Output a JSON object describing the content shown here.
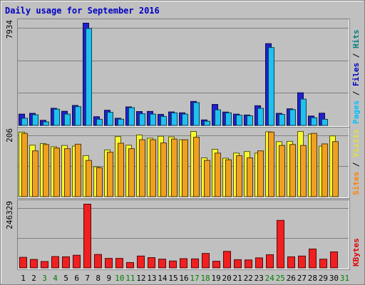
{
  "chart_data": {
    "type": "bar",
    "title": "Daily usage for September 2016",
    "days": [
      "1",
      "2",
      "3",
      "4",
      "5",
      "6",
      "7",
      "8",
      "9",
      "10",
      "11",
      "12",
      "13",
      "14",
      "15",
      "16",
      "17",
      "18",
      "19",
      "20",
      "21",
      "22",
      "23",
      "24",
      "25",
      "26",
      "27",
      "28",
      "29",
      "30",
      "31"
    ],
    "weekend_days": [
      "3",
      "4",
      "10",
      "11",
      "17",
      "18",
      "24",
      "25",
      "31"
    ],
    "panels": [
      {
        "id": "hits",
        "max_label": "7934",
        "ymax": 7934,
        "legend": [
          {
            "text": "Pages",
            "color": "#00C0FF"
          },
          {
            "text": " / ",
            "color": "#000000"
          },
          {
            "text": "Files",
            "color": "#0000C0"
          },
          {
            "text": " / ",
            "color": "#000000"
          },
          {
            "text": "Hits",
            "color": "#008080"
          }
        ],
        "series": [
          {
            "key": "hits",
            "color": "#2020D0",
            "values": [
              900,
              960,
              420,
              1350,
              1120,
              1570,
              7934,
              700,
              1200,
              580,
              1460,
              1100,
              1110,
              880,
              1070,
              1000,
              1880,
              450,
              1650,
              1060,
              900,
              830,
              1550,
              6350,
              960,
              1310,
              2550,
              750,
              970,
              0
            ]
          },
          {
            "key": "files",
            "color": "#20C0F0",
            "values": [
              580,
              850,
              300,
              1280,
              900,
              1480,
              7520,
              500,
              1040,
              510,
              1400,
              930,
              900,
              720,
              1000,
              900,
              1790,
              350,
              1230,
              1000,
              820,
              770,
              1350,
              6050,
              880,
              1250,
              2060,
              620,
              500,
              0
            ]
          }
        ]
      },
      {
        "id": "visits",
        "max_label": "206",
        "ymax": 206,
        "legend": [
          {
            "text": "Sites",
            "color": "#FF8000"
          },
          {
            "text": " / ",
            "color": "#000000"
          },
          {
            "text": "Visits",
            "color": "#E0E040"
          }
        ],
        "series": [
          {
            "key": "visits",
            "color": "#F8F830",
            "values": [
              204,
              163,
              168,
              158,
              162,
              160,
              130,
              95,
              148,
              190,
              163,
              195,
              185,
              191,
              189,
              180,
              206,
              123,
              150,
              122,
              138,
              143,
              138,
              205,
              174,
              175,
              206,
              198,
              160,
              192
            ]
          },
          {
            "key": "sites",
            "color": "#F0A020",
            "values": [
              200,
              145,
              165,
              154,
              152,
              166,
              115,
              92,
              141,
              169,
              152,
              180,
              180,
              170,
              182,
              180,
              188,
              115,
              138,
              117,
              130,
              123,
              145,
              204,
              162,
              165,
              162,
              200,
              167,
              174
            ]
          }
        ]
      },
      {
        "id": "kbytes",
        "max_label": "246329",
        "ymax": 246329,
        "legend": [
          {
            "text": "KBytes",
            "color": "#E00000"
          }
        ],
        "series": [
          {
            "key": "kbytes",
            "color": "#F02020",
            "values": [
              42000,
              34000,
              26000,
              45000,
              44000,
              50000,
              246329,
              53000,
              38000,
              38000,
              22000,
              47000,
              41000,
              35000,
              28000,
              37000,
              36000,
              57000,
              27000,
              65000,
              33000,
              32000,
              40000,
              52000,
              184000,
              44000,
              47000,
              74000,
              35000,
              63000
            ]
          }
        ]
      }
    ]
  }
}
